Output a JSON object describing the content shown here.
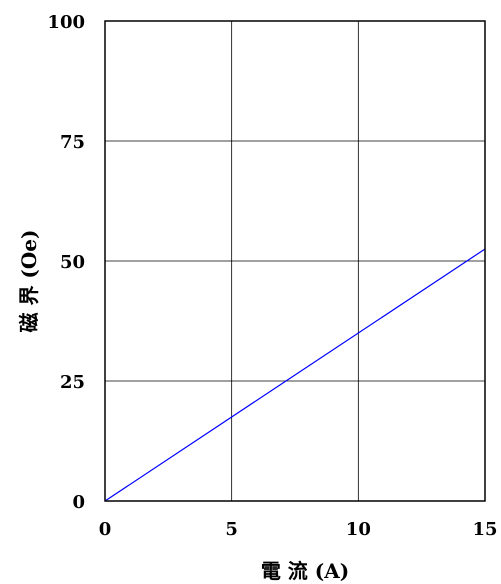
{
  "chart_data": {
    "type": "line",
    "title": "",
    "xlabel": "電 流 (A)",
    "ylabel": "磁 界 (Oe)",
    "xlim": [
      0,
      15
    ],
    "ylim": [
      0,
      100
    ],
    "x_ticks": [
      "0",
      "5",
      "10",
      "15"
    ],
    "y_ticks": [
      "0",
      "25",
      "50",
      "75",
      "100"
    ],
    "x_tick_values": [
      0,
      5,
      10,
      15
    ],
    "y_tick_values": [
      0,
      25,
      50,
      75,
      100
    ],
    "grid": true,
    "series": [
      {
        "color": "#0000ff",
        "x": [
          0,
          15
        ],
        "y": [
          0,
          52.5
        ]
      }
    ]
  }
}
